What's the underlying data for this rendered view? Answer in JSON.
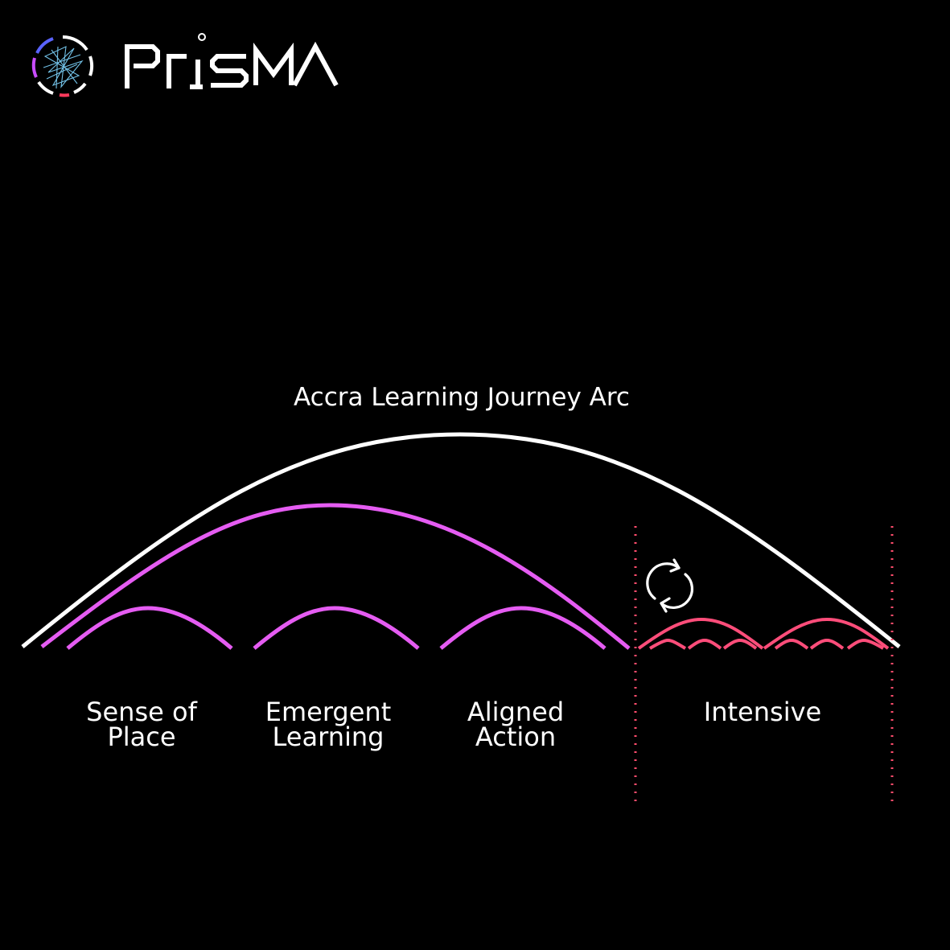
{
  "brand": {
    "name": "PRISMA",
    "logo_icon": "prisma-ring-logo-icon",
    "colors": {
      "ring_accent": "#c94cff",
      "ring_red": "#ff3a5c",
      "ring_blue": "#5a63ff",
      "wordmark": "#ffffff"
    }
  },
  "diagram": {
    "title": "Accra Learning Journey Arc",
    "stages": [
      {
        "line1": "Sense of",
        "line2": "Place"
      },
      {
        "line1": "Emergent",
        "line2": "Learning"
      },
      {
        "line1": "Aligned",
        "line2": "Action"
      },
      {
        "line1": "Intensive",
        "line2": ""
      }
    ],
    "icons": {
      "cycle": "refresh-cycle-icon"
    },
    "colors": {
      "overall_arc": "#ffffff",
      "phase_arcs": "#e55cf2",
      "intensive_arcs": "#ff4d7a",
      "boundary_dots": "#ff4d6d",
      "background": "#000000"
    }
  }
}
